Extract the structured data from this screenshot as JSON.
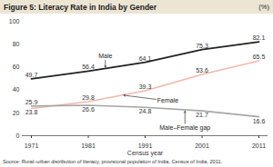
{
  "chart_data": {
    "type": "line",
    "title": "Figure 5: Literacy Rate in India by Gender",
    "y_label": "(%)",
    "x_label": "Census year",
    "source": "Source: Rural–urban distribution of literacy, provisional population of India, Census of India, 2011.",
    "x": [
      1971,
      1981,
      1991,
      2001,
      2011
    ],
    "series": [
      {
        "name": "Male",
        "color": "#222222",
        "values": [
          49.7,
          56.4,
          64.1,
          75.3,
          82.1
        ]
      },
      {
        "name": "Female",
        "color": "#f3b8aa",
        "values": [
          23.8,
          29.8,
          39.3,
          53.6,
          65.5
        ]
      },
      {
        "name": "Male–Female gap",
        "color": "#a6a6a6",
        "values": [
          25.9,
          26.6,
          24.8,
          21.7,
          16.6
        ]
      }
    ],
    "xlim": [
      1971,
      2011
    ],
    "xticks": [
      1971,
      1981,
      1991,
      2001,
      2011
    ],
    "ylim": [
      0,
      100
    ],
    "yticks": [
      0,
      20,
      40,
      60,
      80,
      100
    ],
    "grid": false,
    "data_labels": true
  }
}
